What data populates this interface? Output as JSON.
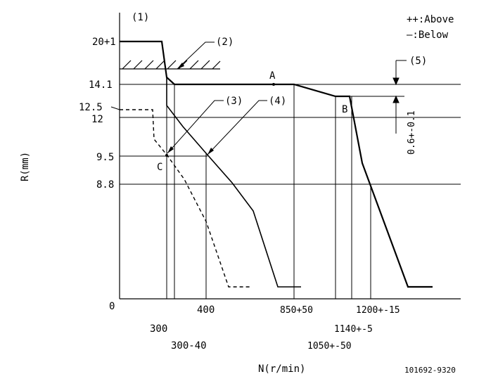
{
  "diagram": {
    "legend": {
      "above": "++:Above",
      "below": "—:Below"
    },
    "axis": {
      "y_label": "R(mm)",
      "x_label": "N(r/min)",
      "origin": "0"
    },
    "callouts": {
      "c1": "(1)",
      "c2": "(2)",
      "c3": "(3)",
      "c4": "(4)",
      "c5": "(5)"
    },
    "points": {
      "a": "A",
      "b": "B",
      "c": "C"
    },
    "y_ticks": {
      "r20": "20+1",
      "r14_1": "14.1",
      "r12_5": "12.5",
      "r12": "12",
      "r9_5": "9.5",
      "r8_8": "8.8"
    },
    "x_ticks": {
      "n300": "300",
      "n300_40": "300-40",
      "n400": "400",
      "n850": "850+50",
      "n1050": "1050+-50",
      "n1140": "1140+-5",
      "n1200": "1200+-15"
    },
    "tolerance": "0.6+-0.1",
    "part_code": "101692-9320"
  }
}
